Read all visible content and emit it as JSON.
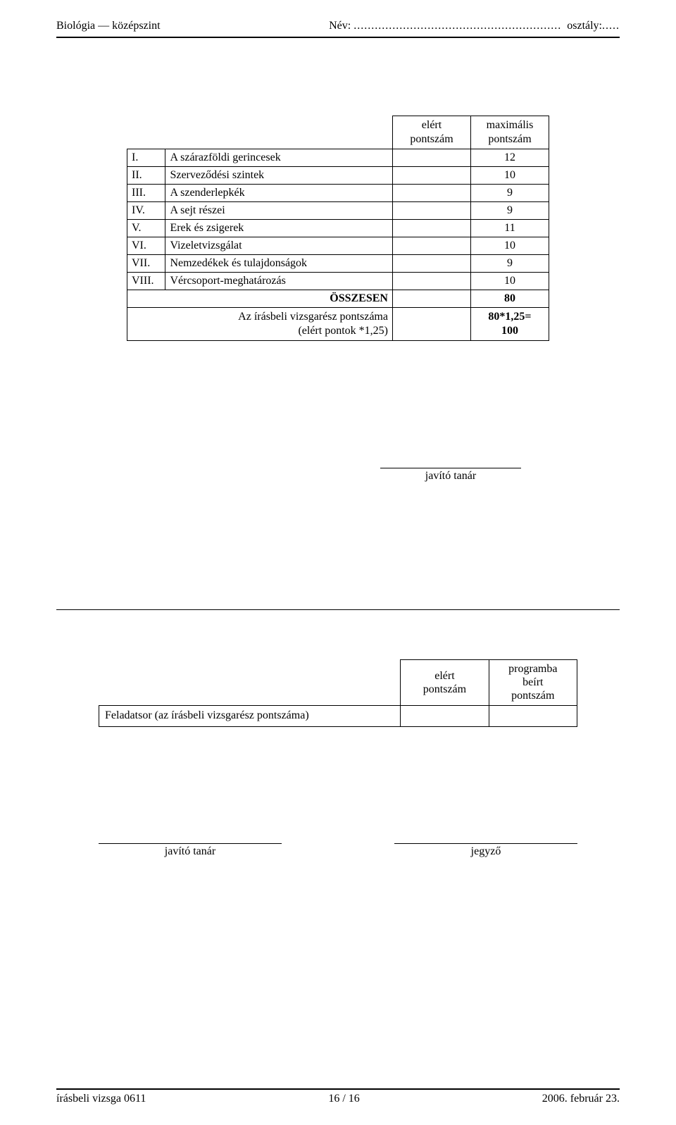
{
  "header": {
    "subject": "Biológia — középszint",
    "name_label": "Név:",
    "name_dots": "...........................................................",
    "class_label": " osztály:",
    "class_dots": "....."
  },
  "main_table": {
    "col_headers": {
      "elert": "elért\npontszám",
      "max": "maximális\npontszám"
    },
    "rows": [
      {
        "roman": "I.",
        "title": "A szárazföldi gerincesek",
        "max": "12"
      },
      {
        "roman": "II.",
        "title": "Szerveződési szintek",
        "max": "10"
      },
      {
        "roman": "III.",
        "title": "A szenderlepkék",
        "max": "9"
      },
      {
        "roman": "IV.",
        "title": "A sejt részei",
        "max": "9"
      },
      {
        "roman": "V.",
        "title": "Erek és zsigerek",
        "max": "11"
      },
      {
        "roman": "VI.",
        "title": "Vizeletvizsgálat",
        "max": "10"
      },
      {
        "roman": "VII.",
        "title": "Nemzedékek és tulajdonságok",
        "max": "9"
      },
      {
        "roman": "VIII.",
        "title": "Vércsoport-meghatározás",
        "max": "10"
      }
    ],
    "total": {
      "label": "ÖSSZESEN",
      "max": "80"
    },
    "written": {
      "label": "Az írásbeli vizsgarész pontszáma\n(elért pontok *1,25)",
      "max": "80*1,25=\n100"
    }
  },
  "signature1": {
    "label": "javító tanár"
  },
  "second_table": {
    "headers": {
      "elert": "elért\npontszám",
      "prog": "programba\nbeírt\npontszám"
    },
    "row_label": "Feladatsor (az írásbeli vizsgarész pontszáma)"
  },
  "bottom_signatures": {
    "left": "javító tanár",
    "right": "jegyző"
  },
  "footer": {
    "left": "írásbeli vizsga 0611",
    "center": "16 / 16",
    "right": "2006. február 23."
  }
}
